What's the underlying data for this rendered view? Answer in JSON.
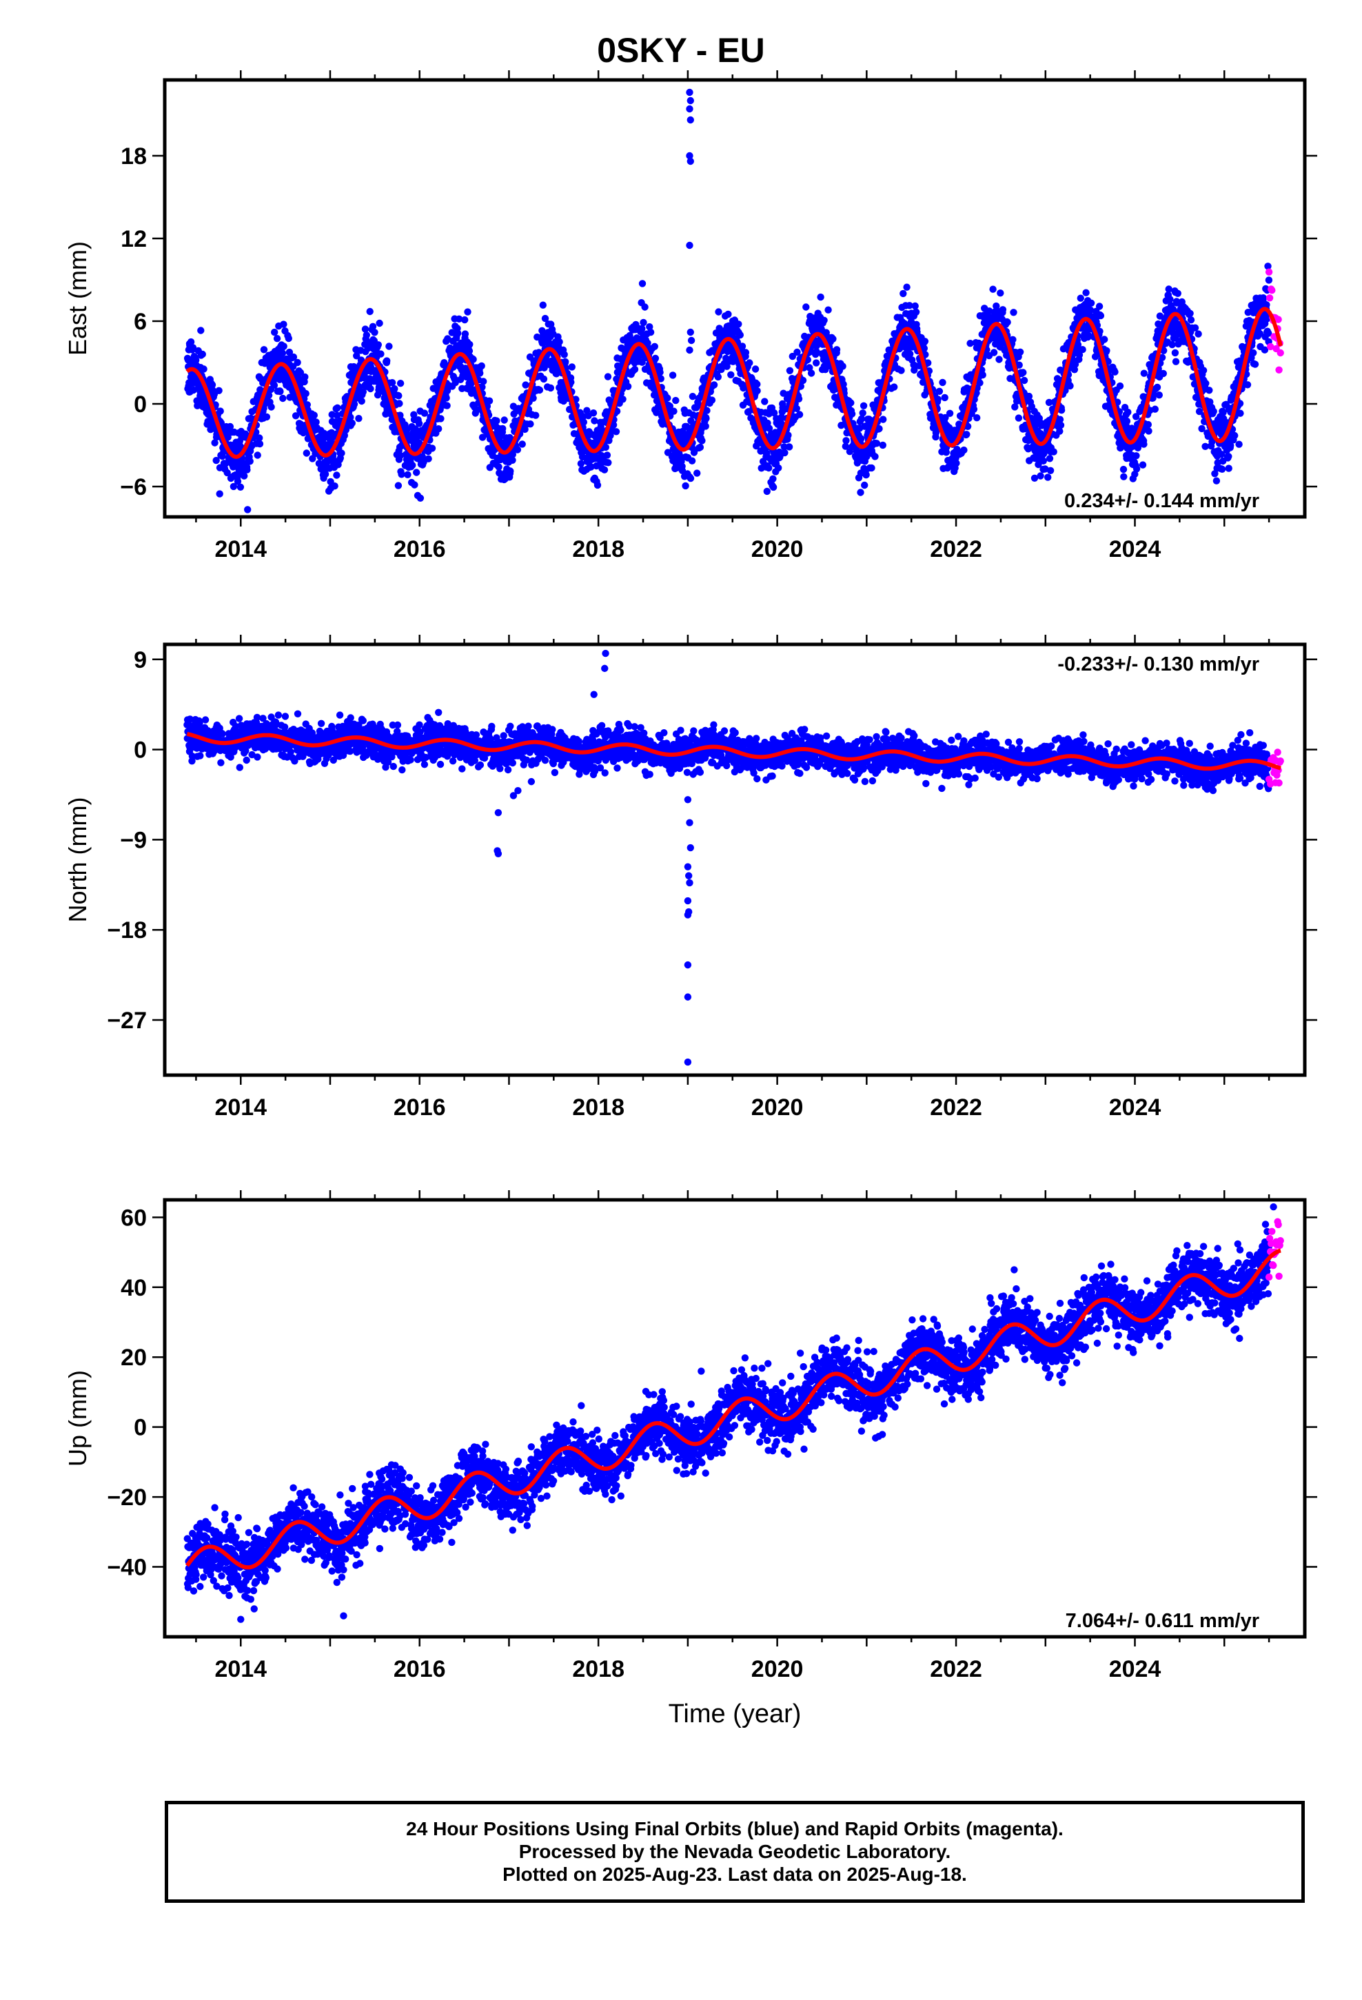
{
  "title": "0SKY - EU",
  "xlabel": "Time (year)",
  "colors": {
    "final_orbits": "#0000ff",
    "rapid_orbits": "#ff00ff",
    "model_fit": "#ff0000",
    "frame": "#000000"
  },
  "footer": {
    "line1": "24 Hour Positions Using Final Orbits (blue) and Rapid Orbits (magenta).",
    "line2": "Processed by the Nevada Geodetic Laboratory.",
    "line3": "Plotted on 2025-Aug-23. Last data on 2025-Aug-18."
  },
  "chart_data": [
    {
      "type": "scatter",
      "panel": "East",
      "ylabel": "East (mm)",
      "xlim": [
        2013.15,
        2025.9
      ],
      "ylim": [
        -8.2,
        23.5
      ],
      "xticks": [
        2014,
        2016,
        2018,
        2020,
        2022,
        2024
      ],
      "yticks": [
        -6,
        0,
        6,
        12,
        18
      ],
      "rate_label": "0.234+/- 0.144 mm/yr",
      "rate_label_position": "bottom-right",
      "data_start": 2013.4,
      "data_end": 2025.63,
      "rapid_start": 2025.5,
      "model": {
        "t0": 2013.4,
        "offset": -0.7,
        "rate": 0.234,
        "annual_amp": 3.2,
        "amp_growth": 0.13,
        "annual_peak": 0.45
      },
      "scatter_sigma": 1.15,
      "outliers": [
        {
          "x": 2019.02,
          "y": 22.6
        },
        {
          "x": 2019.03,
          "y": 22.0
        },
        {
          "x": 2019.02,
          "y": 21.4
        },
        {
          "x": 2019.03,
          "y": 20.6
        },
        {
          "x": 2019.02,
          "y": 18.0
        },
        {
          "x": 2019.03,
          "y": 17.6
        },
        {
          "x": 2019.02,
          "y": 11.5
        },
        {
          "x": 2019.03,
          "y": 5.2
        },
        {
          "x": 2019.04,
          "y": 4.6
        },
        {
          "x": 2019.02,
          "y": 3.9
        },
        {
          "x": 2019.02,
          "y": -5.3
        }
      ],
      "series": [
        {
          "name": "Final Orbits",
          "color": "#0000ff"
        },
        {
          "name": "Rapid Orbits",
          "color": "#ff00ff"
        },
        {
          "name": "Model",
          "color": "#ff0000"
        }
      ]
    },
    {
      "type": "scatter",
      "panel": "North",
      "ylabel": "North (mm)",
      "xlim": [
        2013.15,
        2025.9
      ],
      "ylim": [
        -32.5,
        10.5
      ],
      "xticks": [
        2014,
        2016,
        2018,
        2020,
        2022,
        2024
      ],
      "yticks": [
        -27,
        -18,
        -9,
        0,
        9
      ],
      "rate_label": "-0.233+/- 0.130 mm/yr",
      "rate_label_position": "top-right",
      "data_start": 2013.4,
      "data_end": 2025.63,
      "rapid_start": 2025.5,
      "model": {
        "t0": 2013.4,
        "offset": 1.2,
        "rate": -0.233,
        "annual_amp": 0.45,
        "amp_growth": 0.0,
        "annual_peak": 0.3
      },
      "scatter_sigma": 0.85,
      "outliers": [
        {
          "x": 2018.08,
          "y": 9.6
        },
        {
          "x": 2018.07,
          "y": 8.1
        },
        {
          "x": 2017.95,
          "y": 5.5
        },
        {
          "x": 2016.88,
          "y": -6.3
        },
        {
          "x": 2016.87,
          "y": -10.1
        },
        {
          "x": 2016.88,
          "y": -10.4
        },
        {
          "x": 2017.05,
          "y": -4.6
        },
        {
          "x": 2017.1,
          "y": -4.1
        },
        {
          "x": 2017.25,
          "y": -3.2
        },
        {
          "x": 2019.0,
          "y": -5.0
        },
        {
          "x": 2019.02,
          "y": -7.3
        },
        {
          "x": 2019.03,
          "y": -9.8
        },
        {
          "x": 2019.0,
          "y": -11.7
        },
        {
          "x": 2019.01,
          "y": -12.6
        },
        {
          "x": 2019.02,
          "y": -13.3
        },
        {
          "x": 2019.0,
          "y": -15.1
        },
        {
          "x": 2019.01,
          "y": -16.2
        },
        {
          "x": 2019.0,
          "y": -16.5
        },
        {
          "x": 2019.0,
          "y": -21.5
        },
        {
          "x": 2019.0,
          "y": -24.7
        },
        {
          "x": 2019.0,
          "y": -31.2
        }
      ],
      "series": [
        {
          "name": "Final Orbits",
          "color": "#0000ff"
        },
        {
          "name": "Rapid Orbits",
          "color": "#ff00ff"
        },
        {
          "name": "Model",
          "color": "#ff0000"
        }
      ]
    },
    {
      "type": "scatter",
      "panel": "Up",
      "ylabel": "Up (mm)",
      "xlim": [
        2013.15,
        2025.9
      ],
      "ylim": [
        -60,
        65
      ],
      "xticks": [
        2014,
        2016,
        2018,
        2020,
        2022,
        2024
      ],
      "yticks": [
        -40,
        -20,
        0,
        20,
        40,
        60
      ],
      "rate_label": "7.064+/- 0.611 mm/yr",
      "rate_label_position": "bottom-right",
      "data_start": 2013.4,
      "data_end": 2025.63,
      "rapid_start": 2025.5,
      "model": {
        "t0": 2013.4,
        "offset": -40.5,
        "rate": 7.064,
        "annual_amp": 4.6,
        "amp_growth": 0.0,
        "annual_peak": 0.62
      },
      "scatter_sigma": 4.2,
      "outliers": [
        {
          "x": 2014.0,
          "y": -55.0
        },
        {
          "x": 2015.15,
          "y": -54.0
        },
        {
          "x": 2014.15,
          "y": -52.0
        },
        {
          "x": 2019.15,
          "y": 16.0
        },
        {
          "x": 2022.65,
          "y": 45.0
        },
        {
          "x": 2025.55,
          "y": 63.0
        }
      ],
      "series": [
        {
          "name": "Final Orbits",
          "color": "#0000ff"
        },
        {
          "name": "Rapid Orbits",
          "color": "#ff00ff"
        },
        {
          "name": "Model",
          "color": "#ff0000"
        }
      ]
    }
  ]
}
